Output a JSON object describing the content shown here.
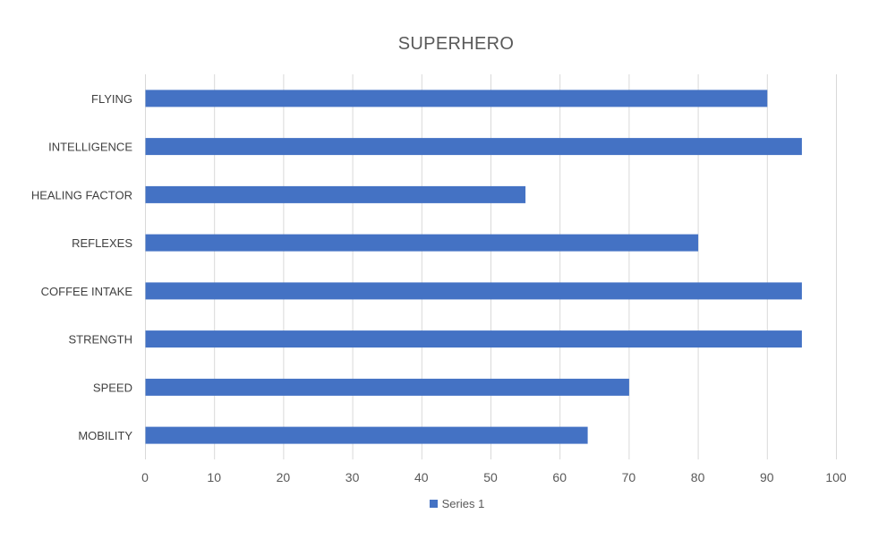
{
  "chart_data": {
    "type": "bar",
    "orientation": "horizontal",
    "title": "SUPERHERO",
    "categories": [
      "MOBILITY",
      "SPEED",
      "STRENGTH",
      "COFFEE INTAKE",
      "REFLEXES",
      "HEALING FACTOR",
      "INTELLIGENCE",
      "FLYING"
    ],
    "series": [
      {
        "name": "Series 1",
        "values": [
          64,
          70,
          95,
          95,
          80,
          55,
          95,
          90
        ],
        "color": "#4472C4"
      }
    ],
    "xticks": [
      0,
      10,
      20,
      30,
      40,
      50,
      60,
      70,
      80,
      90,
      100
    ],
    "xlim": [
      0,
      100
    ],
    "grid": true,
    "legend_position": "bottom"
  }
}
